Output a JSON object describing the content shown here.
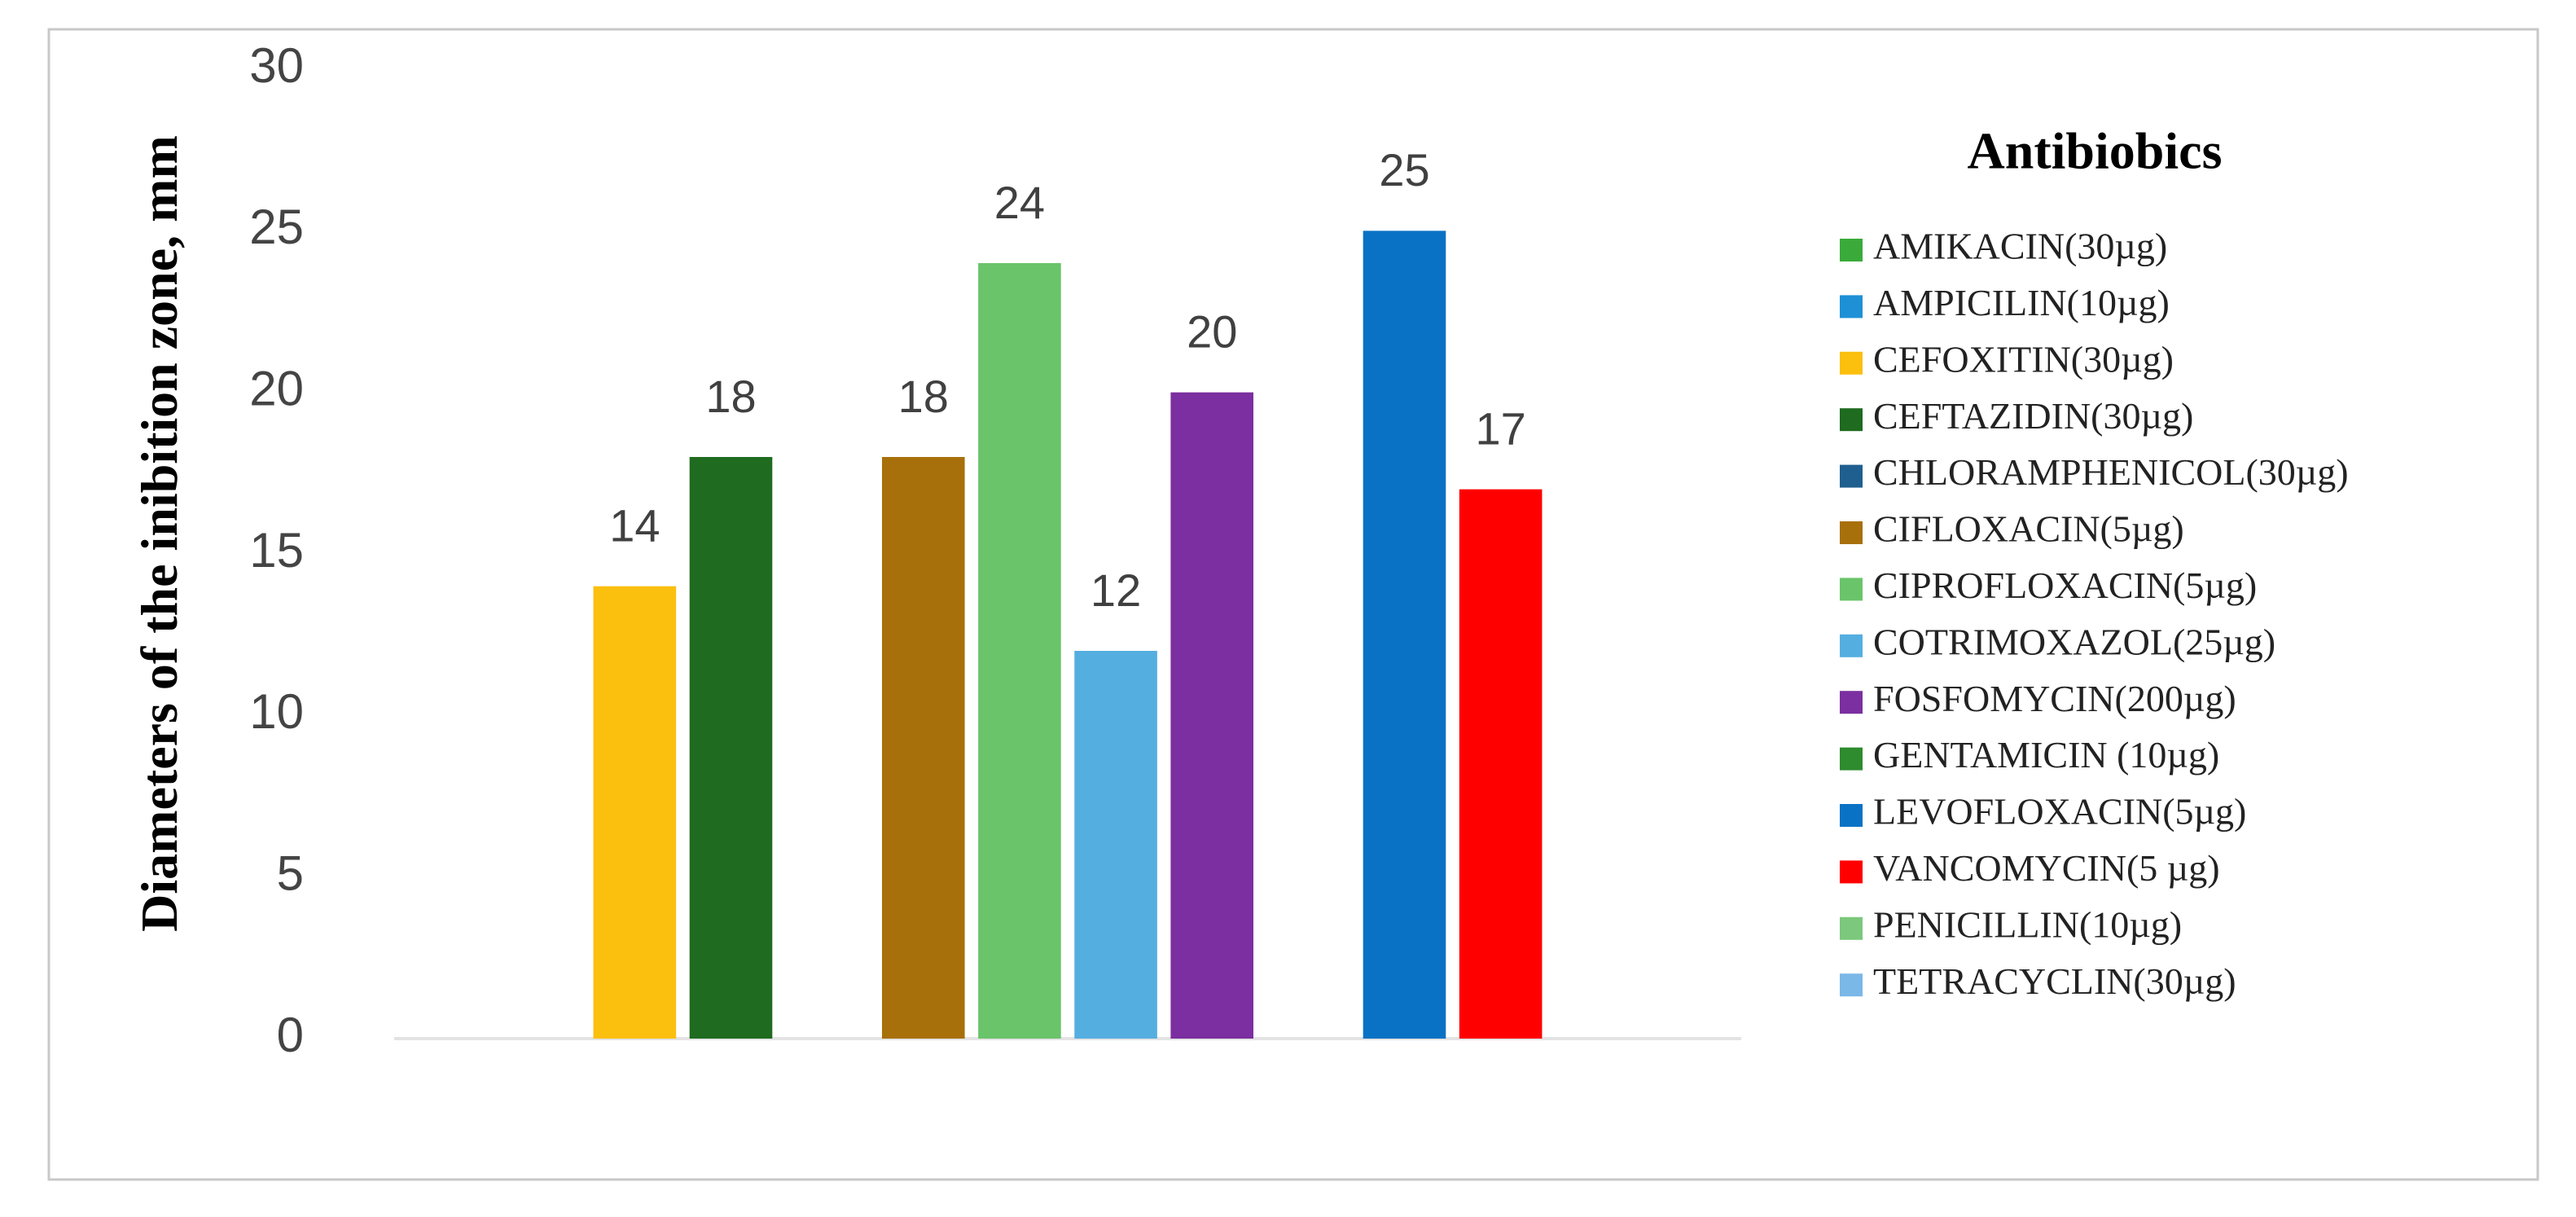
{
  "chart_data": {
    "type": "bar",
    "categories": [
      "AMIKACIN(30µg)",
      "AMPICILIN(10µg)",
      "CEFOXITIN(30µg)",
      "CEFTAZIDIN(30µg)",
      "CHLORAMPHENICOL(30µg)",
      "CIFLOXACIN(5µg)",
      "CIPROFLOXACIN(5µg)",
      "COTRIMOXAZOL(25µg)",
      "FOSFOMYCIN(200µg)",
      "GENTAMICIN (10µg)",
      "LEVOFLOXACIN(5µg)",
      "VANCOMYCIN(5 µg)",
      "PENICILLIN(10µg)",
      "TETRACYCLIN(30µg)"
    ],
    "values": [
      0,
      0,
      14,
      18,
      0,
      18,
      24,
      12,
      20,
      0,
      25,
      17,
      0,
      0
    ],
    "colors": [
      "#3aaa3a",
      "#1e90d6",
      "#fbbf0e",
      "#1f6b1f",
      "#1f5f8f",
      "#a8700a",
      "#6ac46a",
      "#55aee0",
      "#7b2fa0",
      "#2e8b2e",
      "#0a72c4",
      "#ff0000",
      "#7cc87c",
      "#7ab8e8"
    ],
    "ylabel": "Diameters of the inibition zone, mm",
    "legend_title": "Antibiobics",
    "ylim": [
      0,
      30
    ],
    "yticks": [
      0,
      5,
      10,
      15,
      20,
      25,
      30
    ],
    "grid": false,
    "legend": "right"
  }
}
